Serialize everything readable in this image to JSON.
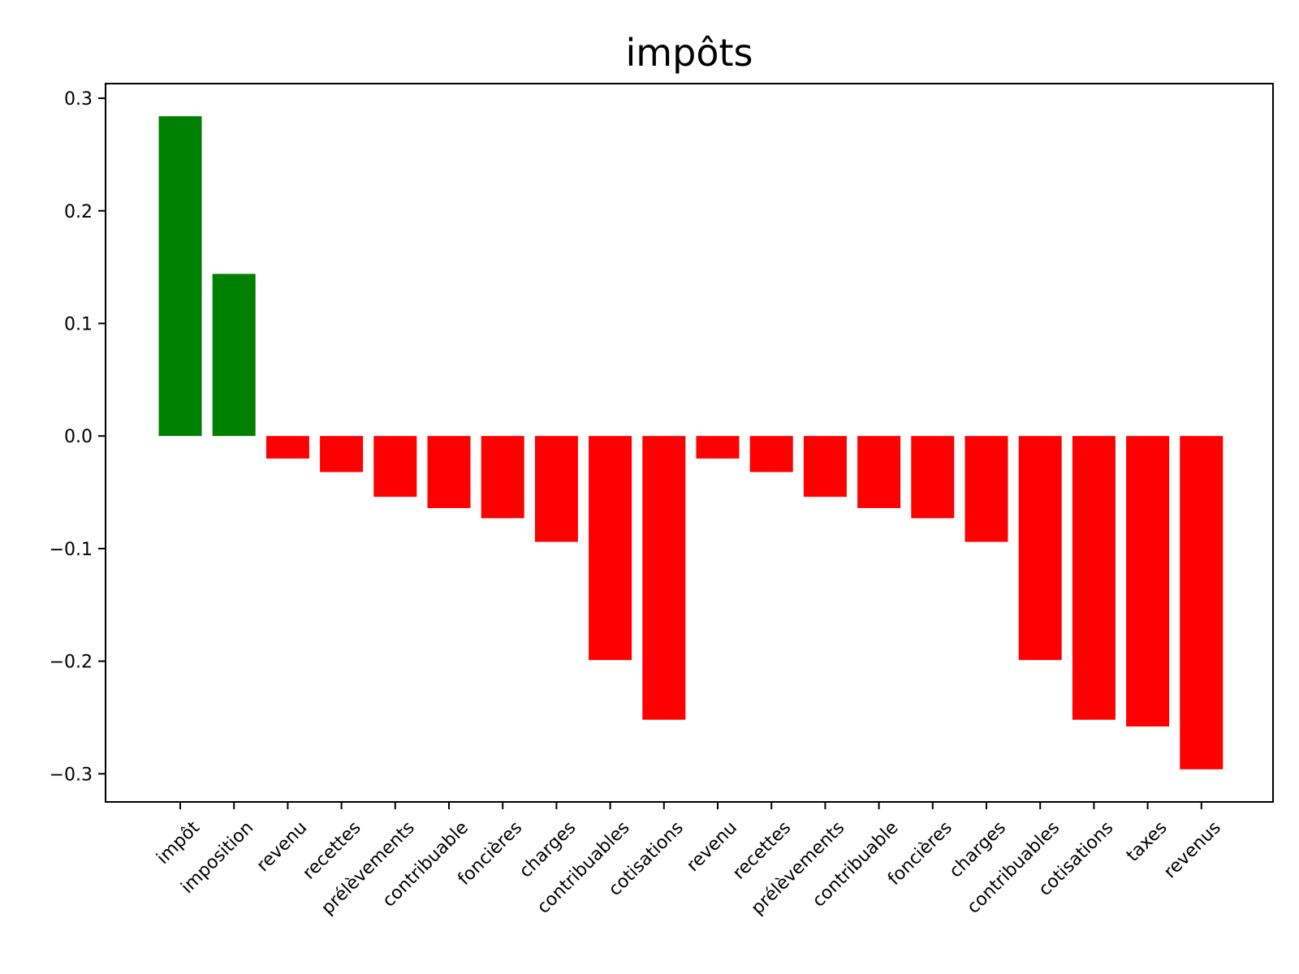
{
  "chart_data": {
    "type": "bar",
    "title": "impôts",
    "xlabel": "",
    "ylabel": "",
    "categories": [
      "impôt",
      "imposition",
      "revenu",
      "recettes",
      "prélèvements",
      "contribuable",
      "foncières",
      "charges",
      "contribuables",
      "cotisations",
      "revenu",
      "recettes",
      "prélèvements",
      "contribuable",
      "foncières",
      "charges",
      "contribuables",
      "cotisations",
      "taxes",
      "revenus"
    ],
    "values": [
      0.284,
      0.144,
      -0.02,
      -0.032,
      -0.054,
      -0.064,
      -0.073,
      -0.094,
      -0.199,
      -0.252,
      -0.02,
      -0.032,
      -0.054,
      -0.064,
      -0.073,
      -0.094,
      -0.199,
      -0.252,
      -0.258,
      -0.296
    ],
    "ylim": [
      -0.325,
      0.313
    ],
    "yticks": [
      -0.3,
      -0.2,
      -0.1,
      0.0,
      0.1,
      0.2,
      0.3
    ],
    "ytick_labels": [
      "−0.3",
      "−0.2",
      "−0.1",
      "0.0",
      "0.1",
      "0.2",
      "0.3"
    ],
    "grid": false,
    "colors": {
      "positive": "#008000",
      "negative": "#ff0000"
    }
  }
}
